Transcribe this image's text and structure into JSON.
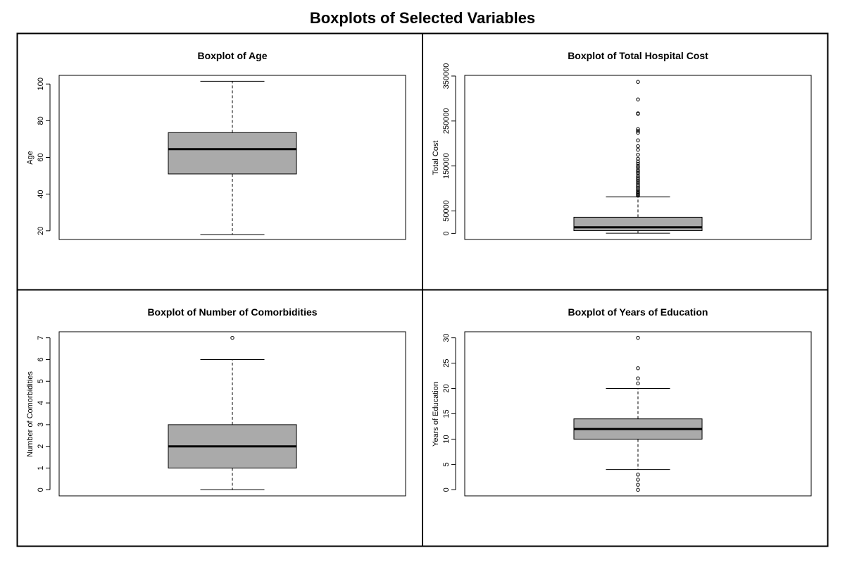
{
  "figure": {
    "title": "Boxplots of Selected Variables"
  },
  "chart_data": [
    {
      "type": "boxplot",
      "title": "Boxplot of Age",
      "ylabel": "Age",
      "xlabel": "",
      "ylim": [
        15.3,
        104.7
      ],
      "yticks": [
        20,
        40,
        60,
        80,
        100
      ],
      "box_color": "#aaaaaa",
      "stats": {
        "lower_whisker": 18,
        "q1": 51,
        "median": 64.5,
        "q3": 73.5,
        "upper_whisker": 101.5
      },
      "outliers": []
    },
    {
      "type": "boxplot",
      "title": "Boxplot of Total Hospital Cost",
      "ylabel": "Total Cost",
      "xlabel": "",
      "ylim": [
        -13500,
        351500
      ],
      "yticks": [
        0,
        50000,
        150000,
        250000,
        350000
      ],
      "box_color": "#aaaaaa",
      "stats": {
        "lower_whisker": 500,
        "q1": 6000,
        "median": 13500,
        "q3": 36000,
        "upper_whisker": 81000
      },
      "outliers": [
        337000,
        298000,
        267000,
        266000,
        232000,
        228000,
        224000,
        207000,
        194000,
        186000,
        175000,
        166000,
        160000,
        155000,
        150000,
        146000,
        141000,
        137000,
        133000,
        128000,
        124000,
        120000,
        116000,
        112000,
        108000,
        104000,
        101000,
        98000,
        95000,
        92000,
        90000,
        88000,
        86000,
        84000
      ]
    },
    {
      "type": "boxplot",
      "title": "Boxplot of Number of Comorbidities",
      "ylabel": "Number of Comorbidities",
      "xlabel": "",
      "ylim": [
        -0.28,
        7.28
      ],
      "yticks": [
        0,
        1,
        2,
        3,
        4,
        5,
        6,
        7
      ],
      "box_color": "#aaaaaa",
      "stats": {
        "lower_whisker": 0,
        "q1": 1,
        "median": 2,
        "q3": 3,
        "upper_whisker": 6
      },
      "outliers": [
        7
      ]
    },
    {
      "type": "boxplot",
      "title": "Boxplot of Years of Education",
      "ylabel": "Years of Education",
      "xlabel": "",
      "ylim": [
        -1.2,
        31.2
      ],
      "yticks": [
        0,
        5,
        10,
        15,
        20,
        25,
        30
      ],
      "box_color": "#aaaaaa",
      "stats": {
        "lower_whisker": 4,
        "q1": 10,
        "median": 12,
        "q3": 14,
        "upper_whisker": 20
      },
      "outliers": [
        30,
        24,
        22,
        21,
        3,
        2,
        1,
        0
      ]
    }
  ]
}
